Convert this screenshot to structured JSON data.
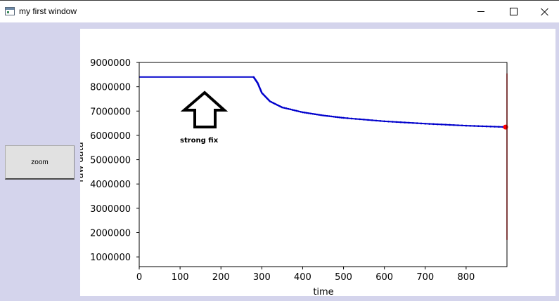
{
  "window": {
    "title": "my first window",
    "controls": [
      "minimize",
      "maximize",
      "close"
    ]
  },
  "toolbar": {
    "zoom_label": "zoom"
  },
  "chart_data": {
    "type": "line",
    "xlabel": "time",
    "ylabel": "raw data",
    "xlim": [
      0,
      900
    ],
    "ylim": [
      600000,
      9000000
    ],
    "x_ticks": [
      "0",
      "100",
      "200",
      "300",
      "400",
      "500",
      "600",
      "700",
      "800"
    ],
    "y_ticks": [
      "1000000",
      "2000000",
      "3000000",
      "4000000",
      "5000000",
      "6000000",
      "7000000",
      "8000000",
      "9000000"
    ],
    "annotation": "strong fix",
    "series": [
      {
        "color": "#0000cc",
        "x": [
          0,
          280,
          290,
          300,
          320,
          350,
          400,
          450,
          500,
          600,
          700,
          800,
          900
        ],
        "y": [
          8400000,
          8400000,
          8150000,
          7750000,
          7400000,
          7150000,
          6950000,
          6820000,
          6720000,
          6580000,
          6480000,
          6400000,
          6340000
        ]
      }
    ],
    "marker_line": {
      "color": "#ff0000",
      "x": 900,
      "y_range": [
        1700000,
        8550000
      ]
    }
  }
}
